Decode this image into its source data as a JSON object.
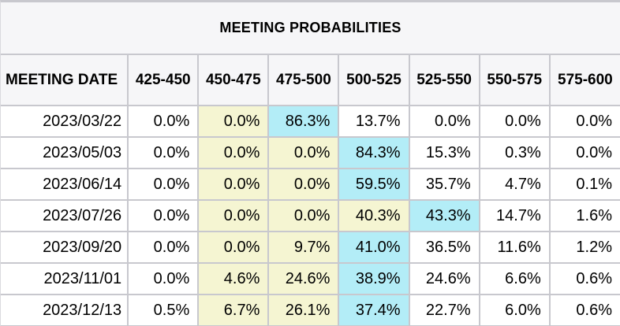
{
  "title": "MEETING PROBABILITIES",
  "table": {
    "columns": [
      "MEETING DATE",
      "425-450",
      "450-475",
      "475-500",
      "500-525",
      "525-550",
      "550-575",
      "575-600"
    ],
    "rows": [
      {
        "date": "2023/03/22",
        "values": [
          "0.0%",
          "0.0%",
          "86.3%",
          "13.7%",
          "0.0%",
          "0.0%",
          "0.0%"
        ],
        "bg": [
          "none",
          "yellow",
          "cyan",
          "none",
          "none",
          "none",
          "none"
        ]
      },
      {
        "date": "2023/05/03",
        "values": [
          "0.0%",
          "0.0%",
          "0.0%",
          "84.3%",
          "15.3%",
          "0.3%",
          "0.0%"
        ],
        "bg": [
          "none",
          "yellow",
          "yellow",
          "cyan",
          "none",
          "none",
          "none"
        ]
      },
      {
        "date": "2023/06/14",
        "values": [
          "0.0%",
          "0.0%",
          "0.0%",
          "59.5%",
          "35.7%",
          "4.7%",
          "0.1%"
        ],
        "bg": [
          "none",
          "yellow",
          "yellow",
          "cyan",
          "none",
          "none",
          "none"
        ]
      },
      {
        "date": "2023/07/26",
        "values": [
          "0.0%",
          "0.0%",
          "0.0%",
          "40.3%",
          "43.3%",
          "14.7%",
          "1.6%"
        ],
        "bg": [
          "none",
          "yellow",
          "yellow",
          "yellow",
          "cyan",
          "none",
          "none"
        ]
      },
      {
        "date": "2023/09/20",
        "values": [
          "0.0%",
          "0.0%",
          "9.7%",
          "41.0%",
          "36.5%",
          "11.6%",
          "1.2%"
        ],
        "bg": [
          "none",
          "yellow",
          "yellow",
          "cyan",
          "none",
          "none",
          "none"
        ]
      },
      {
        "date": "2023/11/01",
        "values": [
          "0.0%",
          "4.6%",
          "24.6%",
          "38.9%",
          "24.6%",
          "6.6%",
          "0.6%"
        ],
        "bg": [
          "none",
          "yellow",
          "yellow",
          "cyan",
          "none",
          "none",
          "none"
        ]
      },
      {
        "date": "2023/12/13",
        "values": [
          "0.5%",
          "6.7%",
          "26.1%",
          "37.4%",
          "22.7%",
          "6.0%",
          "0.6%"
        ],
        "bg": [
          "none",
          "yellow",
          "yellow",
          "cyan",
          "none",
          "none",
          "none"
        ]
      }
    ]
  },
  "colors": {
    "highlight_yellow": "#f5f5d2",
    "highlight_cyan": "#b3edf7",
    "header_bg": "#f6f6f8",
    "grid_line": "#c8c8ce",
    "row_bg": "#ffffff",
    "text": "#000000"
  }
}
